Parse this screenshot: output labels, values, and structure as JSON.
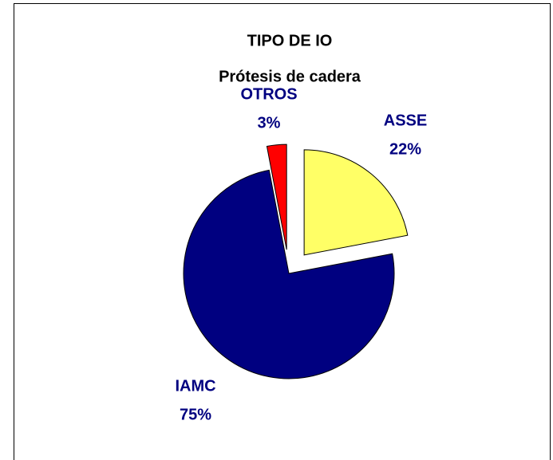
{
  "chart_data": {
    "type": "pie",
    "title": "TIPO DE IO",
    "subtitle": "Prótesis de cadera",
    "categories": [
      "ASSE",
      "IAMC",
      "OTROS"
    ],
    "values": [
      22,
      75,
      3
    ],
    "value_labels": [
      "22%",
      "75%",
      "3%"
    ],
    "colors": [
      "#ffff66",
      "#000080",
      "#ff0000"
    ],
    "label_color": "#000080"
  }
}
